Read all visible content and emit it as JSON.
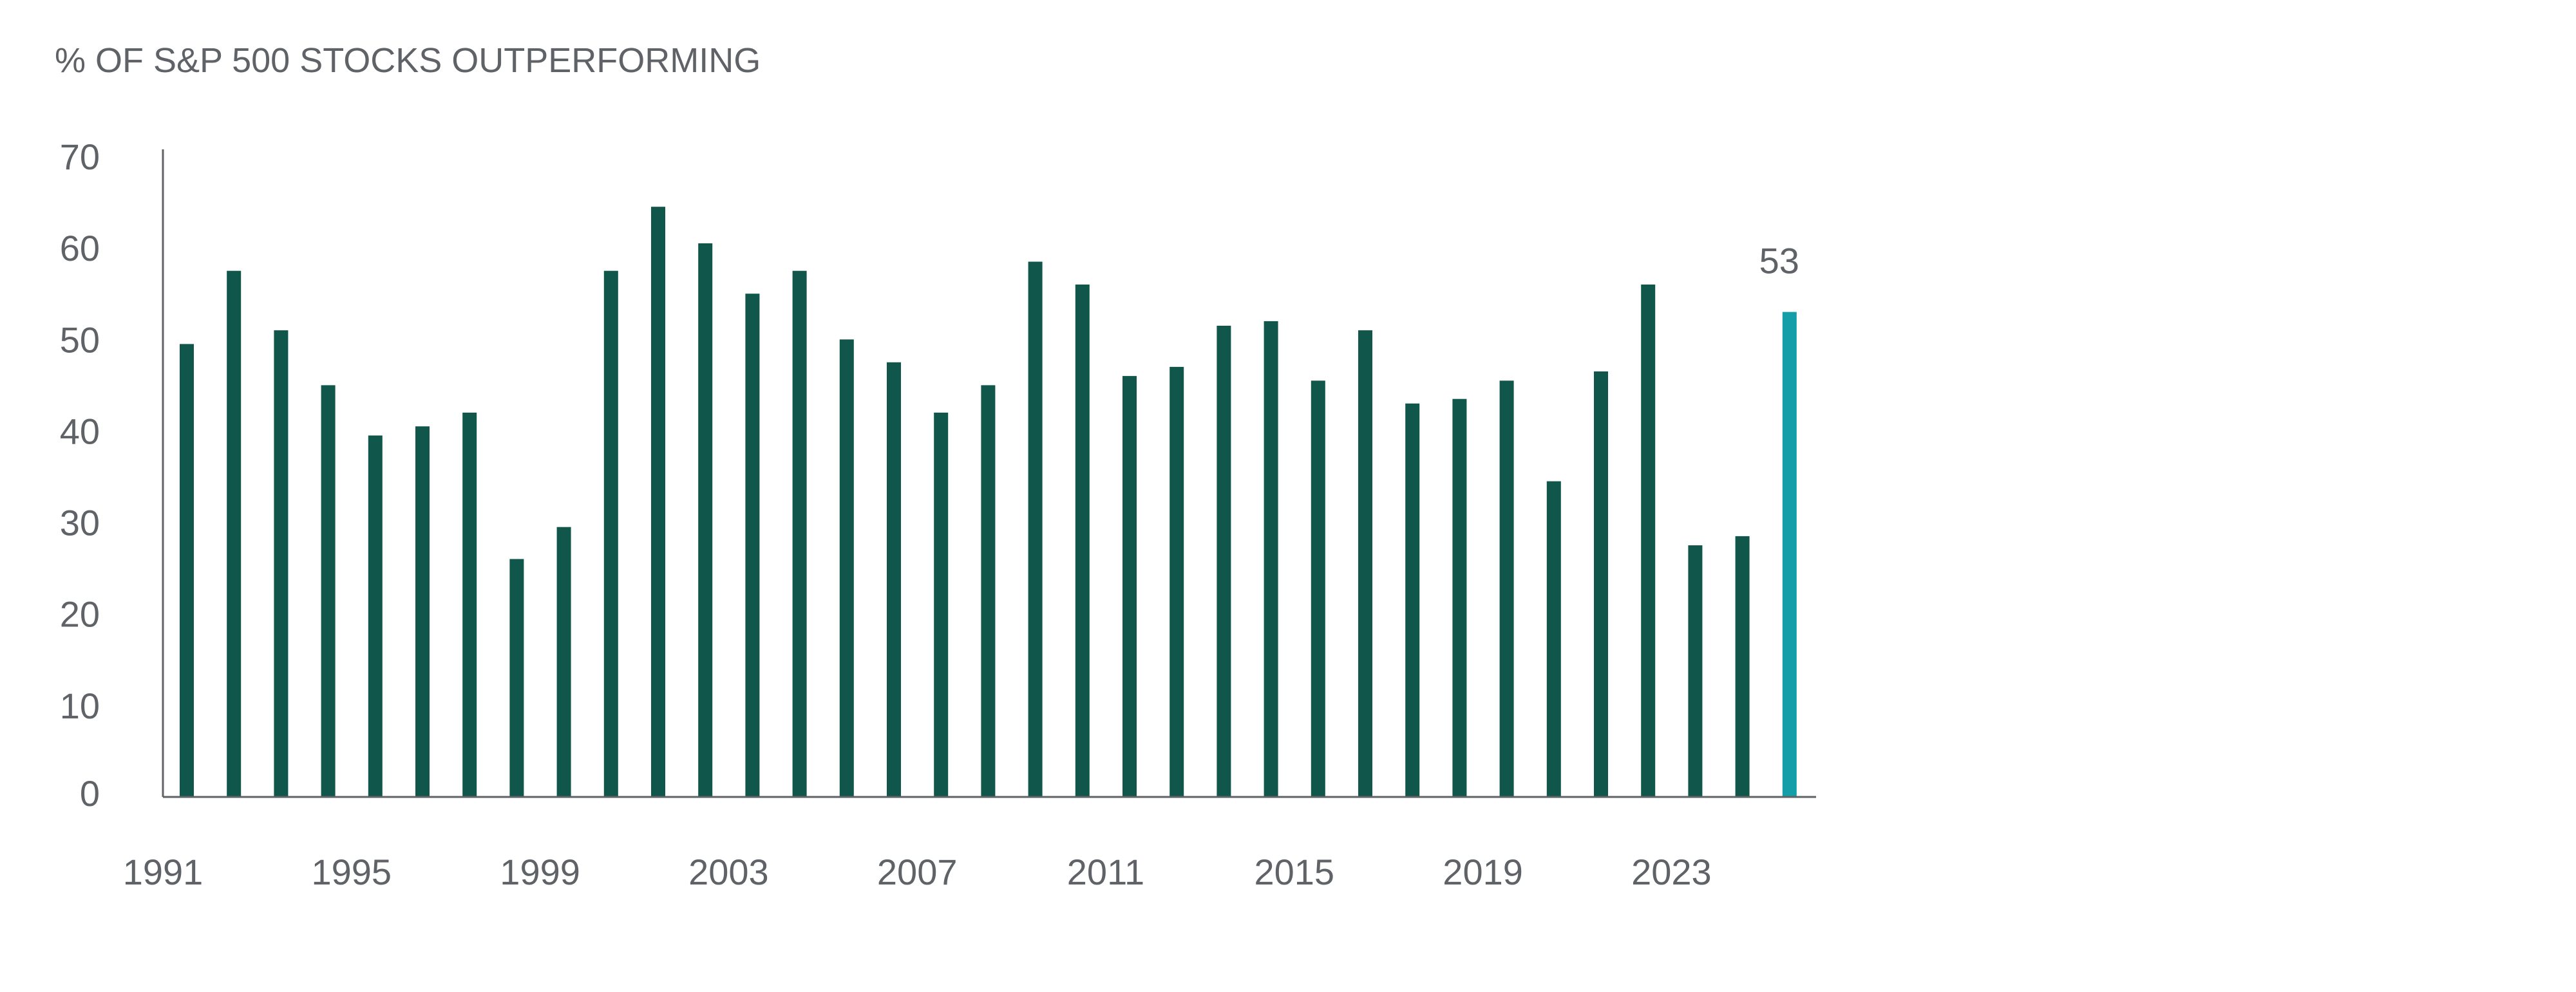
{
  "chart_data": {
    "type": "bar",
    "title": "% OF S&P 500 STOCKS OUTPERFORMING",
    "xlabel": "",
    "ylabel": "",
    "ylim": [
      0,
      70
    ],
    "yticks": [
      0,
      10,
      20,
      30,
      40,
      50,
      60,
      70
    ],
    "x_tick_labels": [
      "1991",
      "1995",
      "1999",
      "2003",
      "2007",
      "2011",
      "2015",
      "2019",
      "2023"
    ],
    "grid": false,
    "legend": "none",
    "categories": [
      "1991",
      "1992",
      "1993",
      "1994",
      "1995",
      "1996",
      "1997",
      "1998",
      "1999",
      "2000",
      "2001",
      "2002",
      "2003",
      "2004",
      "2005",
      "2006",
      "2007",
      "2008",
      "2009",
      "2010",
      "2011",
      "2012",
      "2013",
      "2014",
      "2015",
      "2016",
      "2017",
      "2018",
      "2019",
      "2020",
      "2021",
      "2022",
      "2023",
      "2024",
      "2025"
    ],
    "values": [
      49.5,
      57.5,
      51,
      45,
      39.5,
      40.5,
      42,
      26,
      29.5,
      57.5,
      64.5,
      60.5,
      55,
      57.5,
      50,
      47.5,
      42,
      45,
      58.5,
      56,
      46,
      47,
      51.5,
      52,
      45.5,
      51,
      43,
      43.5,
      45.5,
      34.5,
      46.5,
      56,
      27.5,
      28.5,
      53
    ],
    "highlight_index": 34,
    "highlight_label": "53",
    "colors": {
      "bar": "#11564a",
      "highlight": "#149ea8",
      "axis": "#5f6266",
      "text": "#5f6266"
    }
  }
}
